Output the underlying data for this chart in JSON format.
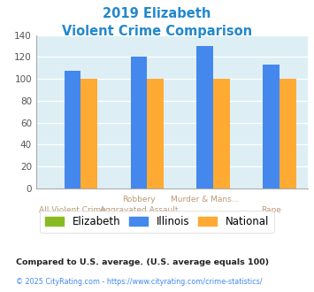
{
  "title_line1": "2019 Elizabeth",
  "title_line2": "Violent Crime Comparison",
  "title_color": "#2288cc",
  "categories_top": [
    "",
    "Robbery",
    "Murder & Mans...",
    ""
  ],
  "categories_bottom": [
    "All Violent Crime",
    "Aggravated Assault",
    "",
    "Rape"
  ],
  "elizabeth": [
    0,
    0,
    0,
    0
  ],
  "illinois": [
    107,
    120,
    130,
    113
  ],
  "national": [
    100,
    100,
    100,
    100
  ],
  "elizabeth_color": "#88bb22",
  "illinois_color": "#4488ee",
  "national_color": "#ffaa33",
  "ylim": [
    0,
    140
  ],
  "yticks": [
    0,
    20,
    40,
    60,
    80,
    100,
    120,
    140
  ],
  "plot_bg_color": "#ddeef5",
  "footer_text1": "Compared to U.S. average. (U.S. average equals 100)",
  "footer_text2": "© 2025 CityRating.com - https://www.cityrating.com/crime-statistics/",
  "footer_color1": "#222222",
  "footer_color2": "#4488ee",
  "legend_labels": [
    "Elizabeth",
    "Illinois",
    "National"
  ],
  "bar_width": 0.25,
  "group_positions": [
    0,
    1,
    2,
    3
  ]
}
